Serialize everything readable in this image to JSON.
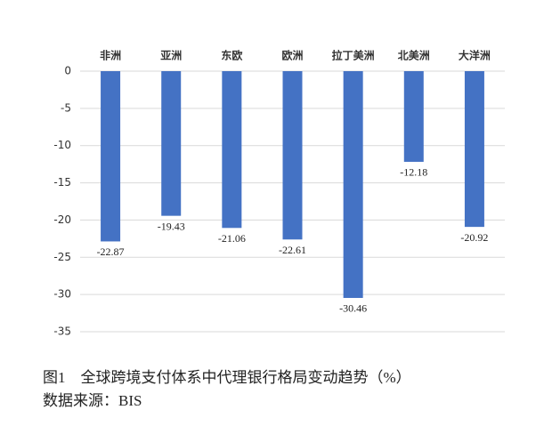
{
  "chart_data": {
    "type": "bar",
    "categories": [
      "非洲",
      "亚洲",
      "东欧",
      "欧洲",
      "拉丁美洲",
      "北美洲",
      "大洋洲"
    ],
    "values": [
      -22.87,
      -19.43,
      -21.06,
      -22.61,
      -30.46,
      -12.18,
      -20.92
    ],
    "color": "#4472c4",
    "ylim": [
      0,
      -35
    ],
    "yticks": [
      0,
      -5,
      -10,
      -15,
      -20,
      -25,
      -30,
      -35
    ],
    "grid": true,
    "caption": "图1　全球跨境支付体系中代理银行格局变动趋势（%）",
    "source": "数据来源：BIS"
  }
}
